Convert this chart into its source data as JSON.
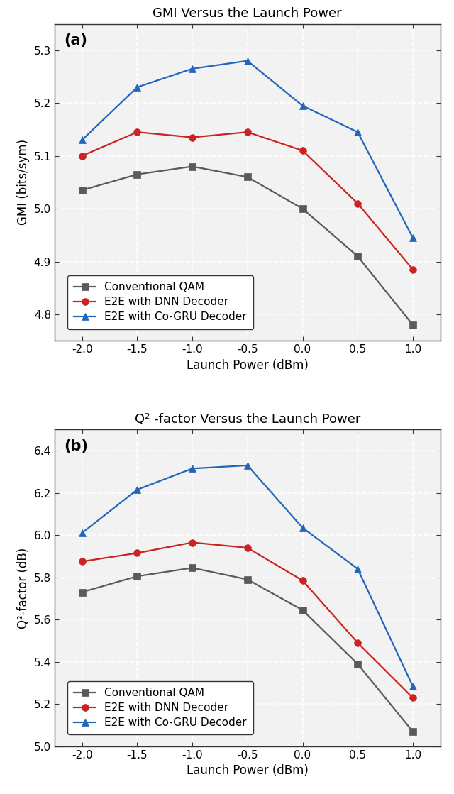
{
  "x": [
    -2.0,
    -1.5,
    -1.0,
    -0.5,
    0.0,
    0.5,
    1.0
  ],
  "gmi_conv": [
    5.035,
    5.065,
    5.08,
    5.06,
    5.0,
    4.91,
    4.78
  ],
  "gmi_dnn": [
    5.1,
    5.145,
    5.135,
    5.145,
    5.11,
    5.01,
    4.885
  ],
  "gmi_cogru": [
    5.13,
    5.23,
    5.265,
    5.28,
    5.195,
    5.145,
    4.945
  ],
  "q2_conv": [
    5.73,
    5.805,
    5.845,
    5.79,
    5.645,
    5.39,
    5.07
  ],
  "q2_dnn": [
    5.875,
    5.915,
    5.965,
    5.94,
    5.785,
    5.49,
    5.23
  ],
  "q2_cogru": [
    6.01,
    6.215,
    6.315,
    6.33,
    6.035,
    5.84,
    5.285
  ],
  "color_conv": "#5a5a5a",
  "color_dnn": "#cc2222",
  "color_cogru": "#2266bb",
  "label_conv": "Conventional QAM",
  "label_dnn": "E2E with DNN Decoder",
  "label_cogru": "E2E with Co-GRU Decoder",
  "title_a": "GMI Versus the Launch Power",
  "title_b": "Q² -factor Versus the Launch Power",
  "xlabel": "Launch Power (dBm)",
  "ylabel_a": "GMI (bits/sym)",
  "ylabel_b": "Q²-factor (dB)",
  "ylim_a": [
    4.75,
    5.35
  ],
  "ylim_b": [
    5.0,
    6.5
  ],
  "yticks_a": [
    4.8,
    4.9,
    5.0,
    5.1,
    5.2,
    5.3
  ],
  "yticks_b": [
    5.0,
    5.2,
    5.4,
    5.6,
    5.8,
    6.0,
    6.2,
    6.4
  ],
  "xticks": [
    -2.0,
    -1.5,
    -1.0,
    -0.5,
    0.0,
    0.5,
    1.0
  ],
  "xticklabels": [
    "-2.0",
    "-1.5",
    "-1.0",
    "-0.5",
    "0.0",
    "0.5",
    "1.0"
  ],
  "panel_a_label": "(a)",
  "panel_b_label": "(b)",
  "bg_color": "#f2f2f2",
  "grid_color": "#ffffff",
  "grid_linestyle": "--",
  "marker_conv": "s",
  "marker_dnn": "o",
  "marker_cogru": "^",
  "linewidth": 1.6,
  "markersize": 7,
  "markeredgewidth": 0.5,
  "title_fontsize": 13,
  "label_fontsize": 12,
  "tick_fontsize": 11,
  "legend_fontsize": 11,
  "panel_label_fontsize": 15
}
